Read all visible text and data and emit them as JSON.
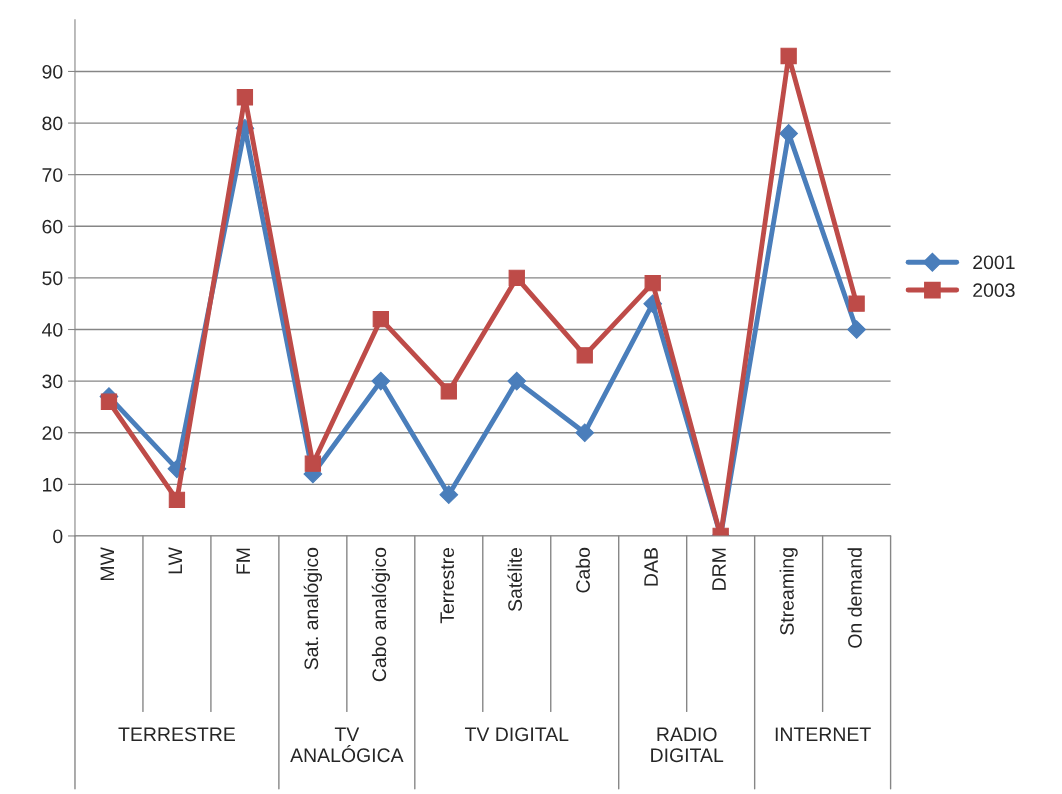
{
  "chart_data": {
    "type": "line",
    "categories": [
      "MW",
      "LW",
      "FM",
      "Sat. analógico",
      "Cabo analógico",
      "Terrestre",
      "Satélite",
      "Cabo",
      "DAB",
      "DRM",
      "Streaming",
      "On demand"
    ],
    "series": [
      {
        "name": "2001",
        "color": "#4a7ebb",
        "marker": "diamond",
        "values": [
          27,
          13,
          79,
          12,
          30,
          8,
          30,
          20,
          45,
          0,
          78,
          40
        ]
      },
      {
        "name": "2003",
        "color": "#be4b48",
        "marker": "square",
        "values": [
          26,
          7,
          85,
          14,
          42,
          28,
          50,
          35,
          49,
          0,
          93,
          45
        ]
      }
    ],
    "annotations": [
      "TERRESTRE",
      "TV ANALÓGICA",
      "TV DIGITAL",
      "RADIO DIGITAL",
      "INTERNET"
    ],
    "ylim": [
      0,
      100
    ],
    "yticks": [
      0,
      10,
      20,
      30,
      40,
      50,
      60,
      70,
      80,
      90
    ],
    "grid": "y",
    "legend": "right",
    "line_style": "solid"
  }
}
